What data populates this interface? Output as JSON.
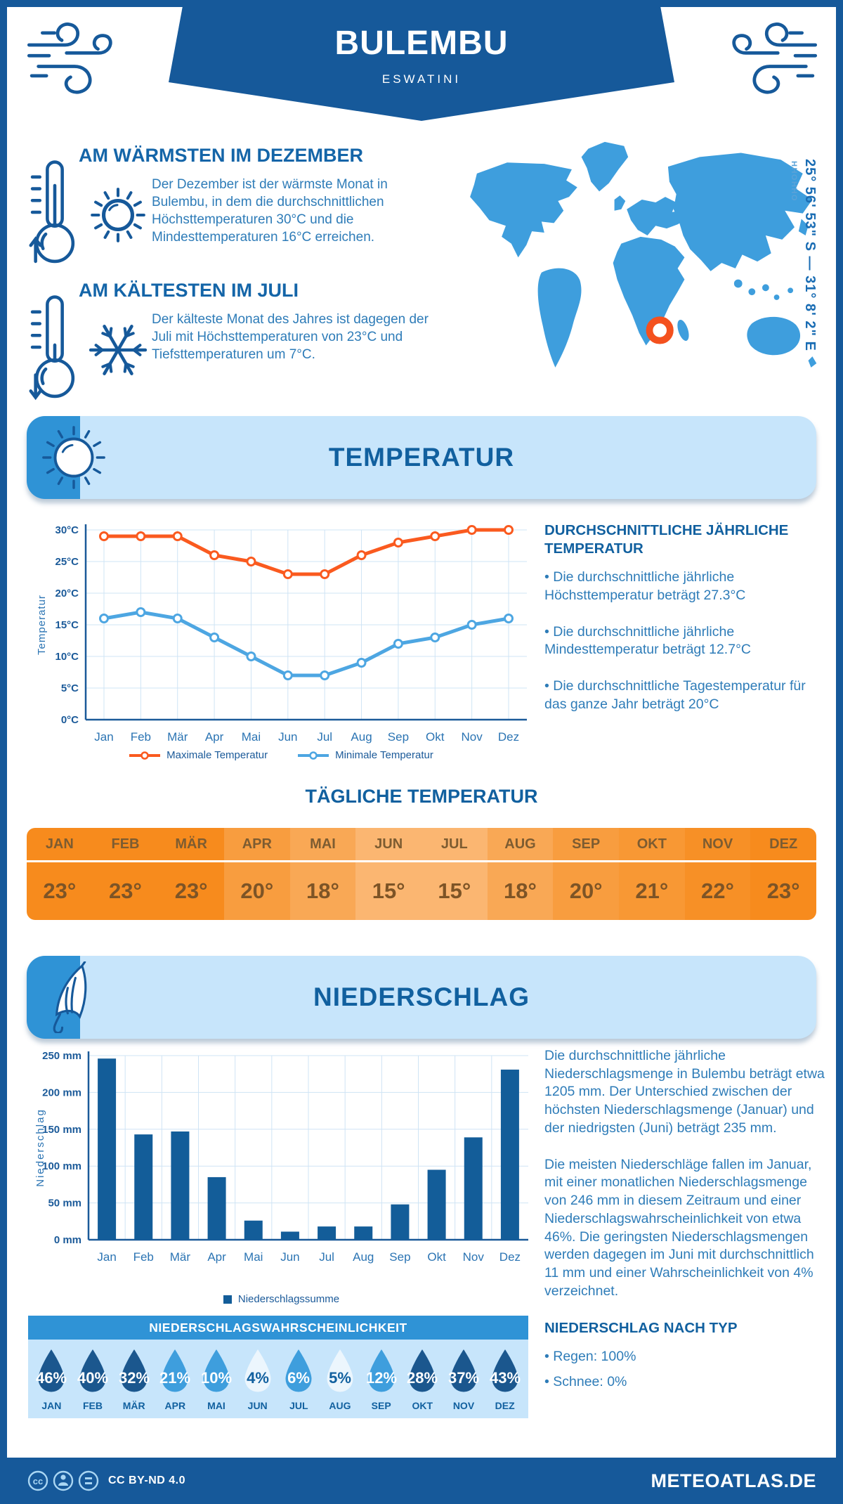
{
  "page": {
    "dark_blue": "#16599a",
    "mid_blue": "#2f93d6",
    "map_blue": "#3e9edd",
    "light_blue": "#c7e5fb",
    "orange": "#fa5a1f",
    "marker_orange": "#f4511e"
  },
  "header": {
    "title": "BULEMBU",
    "subtitle": "ESWATINI",
    "region": "HHOHHO",
    "coordinates": "25° 56' 53\" S — 31° 8' 2\" E"
  },
  "warmest": {
    "heading": "AM WÄRMSTEN IM DEZEMBER",
    "text": "Der Dezember ist der wärmste Monat in Bulembu, in dem die durchschnittlichen Höchsttemperaturen 30°C und die Mindesttemperaturen 16°C erreichen."
  },
  "coldest": {
    "heading": "AM KÄLTESTEN IM JULI",
    "text": "Der kälteste Monat des Jahres ist dagegen der Juli mit Höchsttemperaturen von 23°C und Tiefsttemperaturen um 7°C."
  },
  "temperature_section": {
    "banner_title": "TEMPERATUR",
    "aside_heading": "DURCHSCHNITTLICHE JÄHRLICHE TEMPERATUR",
    "bullets": [
      "• Die durchschnittliche jährliche Höchsttemperatur beträgt 27.3°C",
      "• Die durchschnittliche jährliche Mindesttemperatur beträgt 12.7°C",
      "• Die durchschnittliche Tagestemperatur für das ganze Jahr beträgt 20°C"
    ],
    "daily_title": "TÄGLICHE TEMPERATUR"
  },
  "precipitation_section": {
    "banner_title": "NIEDERSCHLAG",
    "paragraphs": [
      "Die durchschnittliche jährliche Niederschlagsmenge in Bulembu beträgt etwa 1205 mm. Der Unterschied zwischen der höchsten Niederschlagsmenge (Januar) und der niedrigsten (Juni) beträgt 235 mm.",
      "Die meisten Niederschläge fallen im Januar, mit einer monatlichen Niederschlagsmenge von 246 mm in diesem Zeitraum und einer Niederschlagswahrscheinlichkeit von etwa 46%. Die geringsten Niederschlagsmengen werden dagegen im Juni mit durchschnittlich 11 mm und einer Wahrscheinlichkeit von 4% verzeichnet."
    ],
    "probability_title": "NIEDERSCHLAGSWAHRSCHEINLICHKEIT",
    "type_heading": "NIEDERSCHLAG NACH TYP",
    "type_bullets": [
      "• Regen: 100%",
      "• Schnee: 0%"
    ]
  },
  "footer": {
    "license": "CC BY-ND 4.0",
    "brand": "METEOATLAS.DE"
  },
  "chart_data": [
    {
      "type": "line",
      "title": "TEMPERATUR",
      "x": [
        "Jan",
        "Feb",
        "Mär",
        "Apr",
        "Mai",
        "Jun",
        "Jul",
        "Aug",
        "Sep",
        "Okt",
        "Nov",
        "Dez"
      ],
      "ylabel": "Temperatur",
      "ylim": [
        0,
        30
      ],
      "yticks": [
        "0°C",
        "5°C",
        "10°C",
        "15°C",
        "20°C",
        "25°C",
        "30°C"
      ],
      "grid": true,
      "legend_position": "bottom",
      "series": [
        {
          "name": "Maximale Temperatur",
          "color": "#fa5a1f",
          "values": [
            29,
            29,
            29,
            26,
            25,
            23,
            23,
            26,
            28,
            29,
            30,
            30
          ]
        },
        {
          "name": "Minimale Temperatur",
          "color": "#4da6e2",
          "values": [
            16,
            17,
            16,
            13,
            10,
            7,
            7,
            9,
            12,
            13,
            15,
            16
          ]
        }
      ]
    },
    {
      "type": "bar",
      "title": "NIEDERSCHLAG",
      "categories": [
        "Jan",
        "Feb",
        "Mär",
        "Apr",
        "Mai",
        "Jun",
        "Jul",
        "Aug",
        "Sep",
        "Okt",
        "Nov",
        "Dez"
      ],
      "values": [
        246,
        143,
        147,
        85,
        26,
        11,
        18,
        18,
        48,
        95,
        139,
        231
      ],
      "ylabel": "Niederschlag",
      "ylim": [
        0,
        250
      ],
      "yticks": [
        "0 mm",
        "50 mm",
        "100 mm",
        "150 mm",
        "200 mm",
        "250 mm"
      ],
      "grid": true,
      "bar_color": "#135d99",
      "legend": "Niederschlagssumme",
      "legend_position": "bottom"
    },
    {
      "type": "table",
      "title": "TÄGLICHE TEMPERATUR",
      "categories": [
        "JAN",
        "FEB",
        "MÄR",
        "APR",
        "MAI",
        "JUN",
        "JUL",
        "AUG",
        "SEP",
        "OKT",
        "NOV",
        "DEZ"
      ],
      "values": [
        "23°",
        "23°",
        "23°",
        "20°",
        "18°",
        "15°",
        "15°",
        "18°",
        "20°",
        "21°",
        "22°",
        "23°"
      ],
      "cell_colors": [
        "#f78b1d",
        "#f78b1d",
        "#f78b1d",
        "#f89d3f",
        "#f9a855",
        "#fbb671",
        "#fbb671",
        "#f9a855",
        "#f89d3f",
        "#f89834",
        "#f79026",
        "#f78b1d"
      ],
      "header_color": "#7d5c31",
      "value_color": "#7d5426"
    },
    {
      "type": "table",
      "title": "NIEDERSCHLAGSWAHRSCHEINLICHKEIT",
      "categories": [
        "JAN",
        "FEB",
        "MÄR",
        "APR",
        "MAI",
        "JUN",
        "JUL",
        "AUG",
        "SEP",
        "OKT",
        "NOV",
        "DEZ"
      ],
      "values": [
        "46%",
        "40%",
        "32%",
        "21%",
        "10%",
        "4%",
        "6%",
        "5%",
        "12%",
        "28%",
        "37%",
        "43%"
      ],
      "levels": [
        "dark",
        "dark",
        "dark",
        "mid",
        "mid",
        "light",
        "mid",
        "light",
        "mid",
        "dark",
        "dark",
        "dark"
      ],
      "colors": {
        "dark": "#1b578e",
        "mid": "#3e9edd",
        "light": "#ecf6fd"
      },
      "light_text_color": "#11609f"
    }
  ]
}
